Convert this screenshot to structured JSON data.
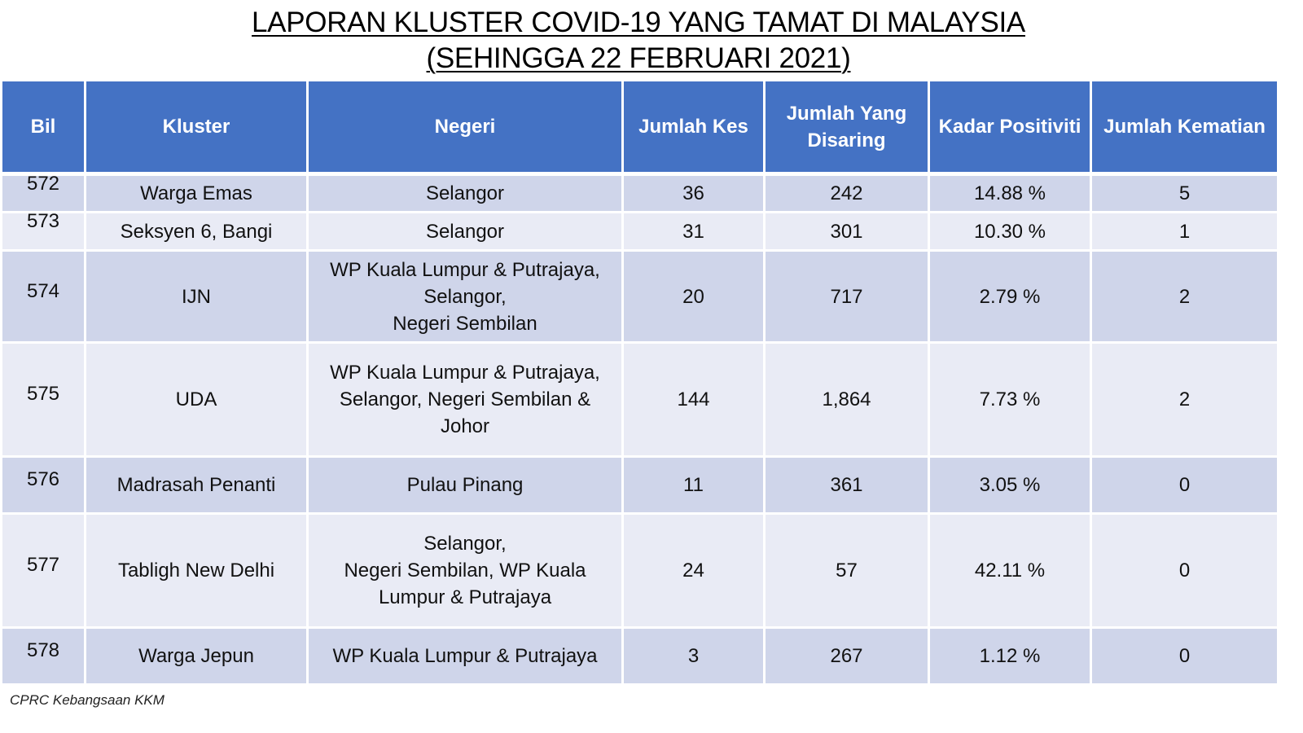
{
  "title": {
    "line1": "LAPORAN KLUSTER COVID-19 YANG TAMAT DI MALAYSIA",
    "line2": "(SEHINGGA 22 FEBRUARI 2021)"
  },
  "colors": {
    "header_bg": "#4472c4",
    "row_odd_bg": "#cfd5ea",
    "row_even_bg": "#e9ebf5"
  },
  "table": {
    "headers": {
      "bil": "Bil",
      "kluster": "Kluster",
      "negeri": "Negeri",
      "jumlah_kes": "Jumlah Kes",
      "jumlah_disaring_1": "Jumlah Yang",
      "jumlah_disaring_2": "Disaring",
      "kadar_positiviti": "Kadar Positiviti",
      "jumlah_kematian": "Jumlah Kematian"
    },
    "rows": [
      {
        "bil": "572",
        "kluster": "Warga Emas",
        "negeri": [
          "Selangor"
        ],
        "kes": "36",
        "disaring": "242",
        "positiviti": "14.88 %",
        "kematian": "5"
      },
      {
        "bil": "573",
        "kluster": "Seksyen 6, Bangi",
        "negeri": [
          "Selangor"
        ],
        "kes": "31",
        "disaring": "301",
        "positiviti": "10.30 %",
        "kematian": "1"
      },
      {
        "bil": "574",
        "kluster": "IJN",
        "negeri": [
          "WP Kuala Lumpur & Putrajaya,",
          "Selangor,",
          "Negeri Sembilan"
        ],
        "kes": "20",
        "disaring": "717",
        "positiviti": "2.79 %",
        "kematian": "2"
      },
      {
        "bil": "575",
        "kluster": "UDA",
        "negeri": [
          "WP Kuala Lumpur & Putrajaya,",
          "Selangor, Negeri Sembilan &",
          "Johor"
        ],
        "kes": "144",
        "disaring": "1,864",
        "positiviti": "7.73 %",
        "kematian": "2"
      },
      {
        "bil": "576",
        "kluster": "Madrasah Penanti",
        "negeri": [
          "Pulau Pinang"
        ],
        "kes": "11",
        "disaring": "361",
        "positiviti": "3.05 %",
        "kematian": "0"
      },
      {
        "bil": "577",
        "kluster": "Tabligh New Delhi",
        "negeri": [
          "Selangor,",
          "Negeri Sembilan, WP Kuala",
          "Lumpur & Putrajaya"
        ],
        "kes": "24",
        "disaring": "57",
        "positiviti": "42.11 %",
        "kematian": "0"
      },
      {
        "bil": "578",
        "kluster": "Warga Jepun",
        "negeri": [
          "WP Kuala Lumpur & Putrajaya"
        ],
        "kes": "3",
        "disaring": "267",
        "positiviti": "1.12 %",
        "kematian": "0"
      }
    ]
  },
  "footer": {
    "source": "CPRC Kebangsaan KKM"
  }
}
